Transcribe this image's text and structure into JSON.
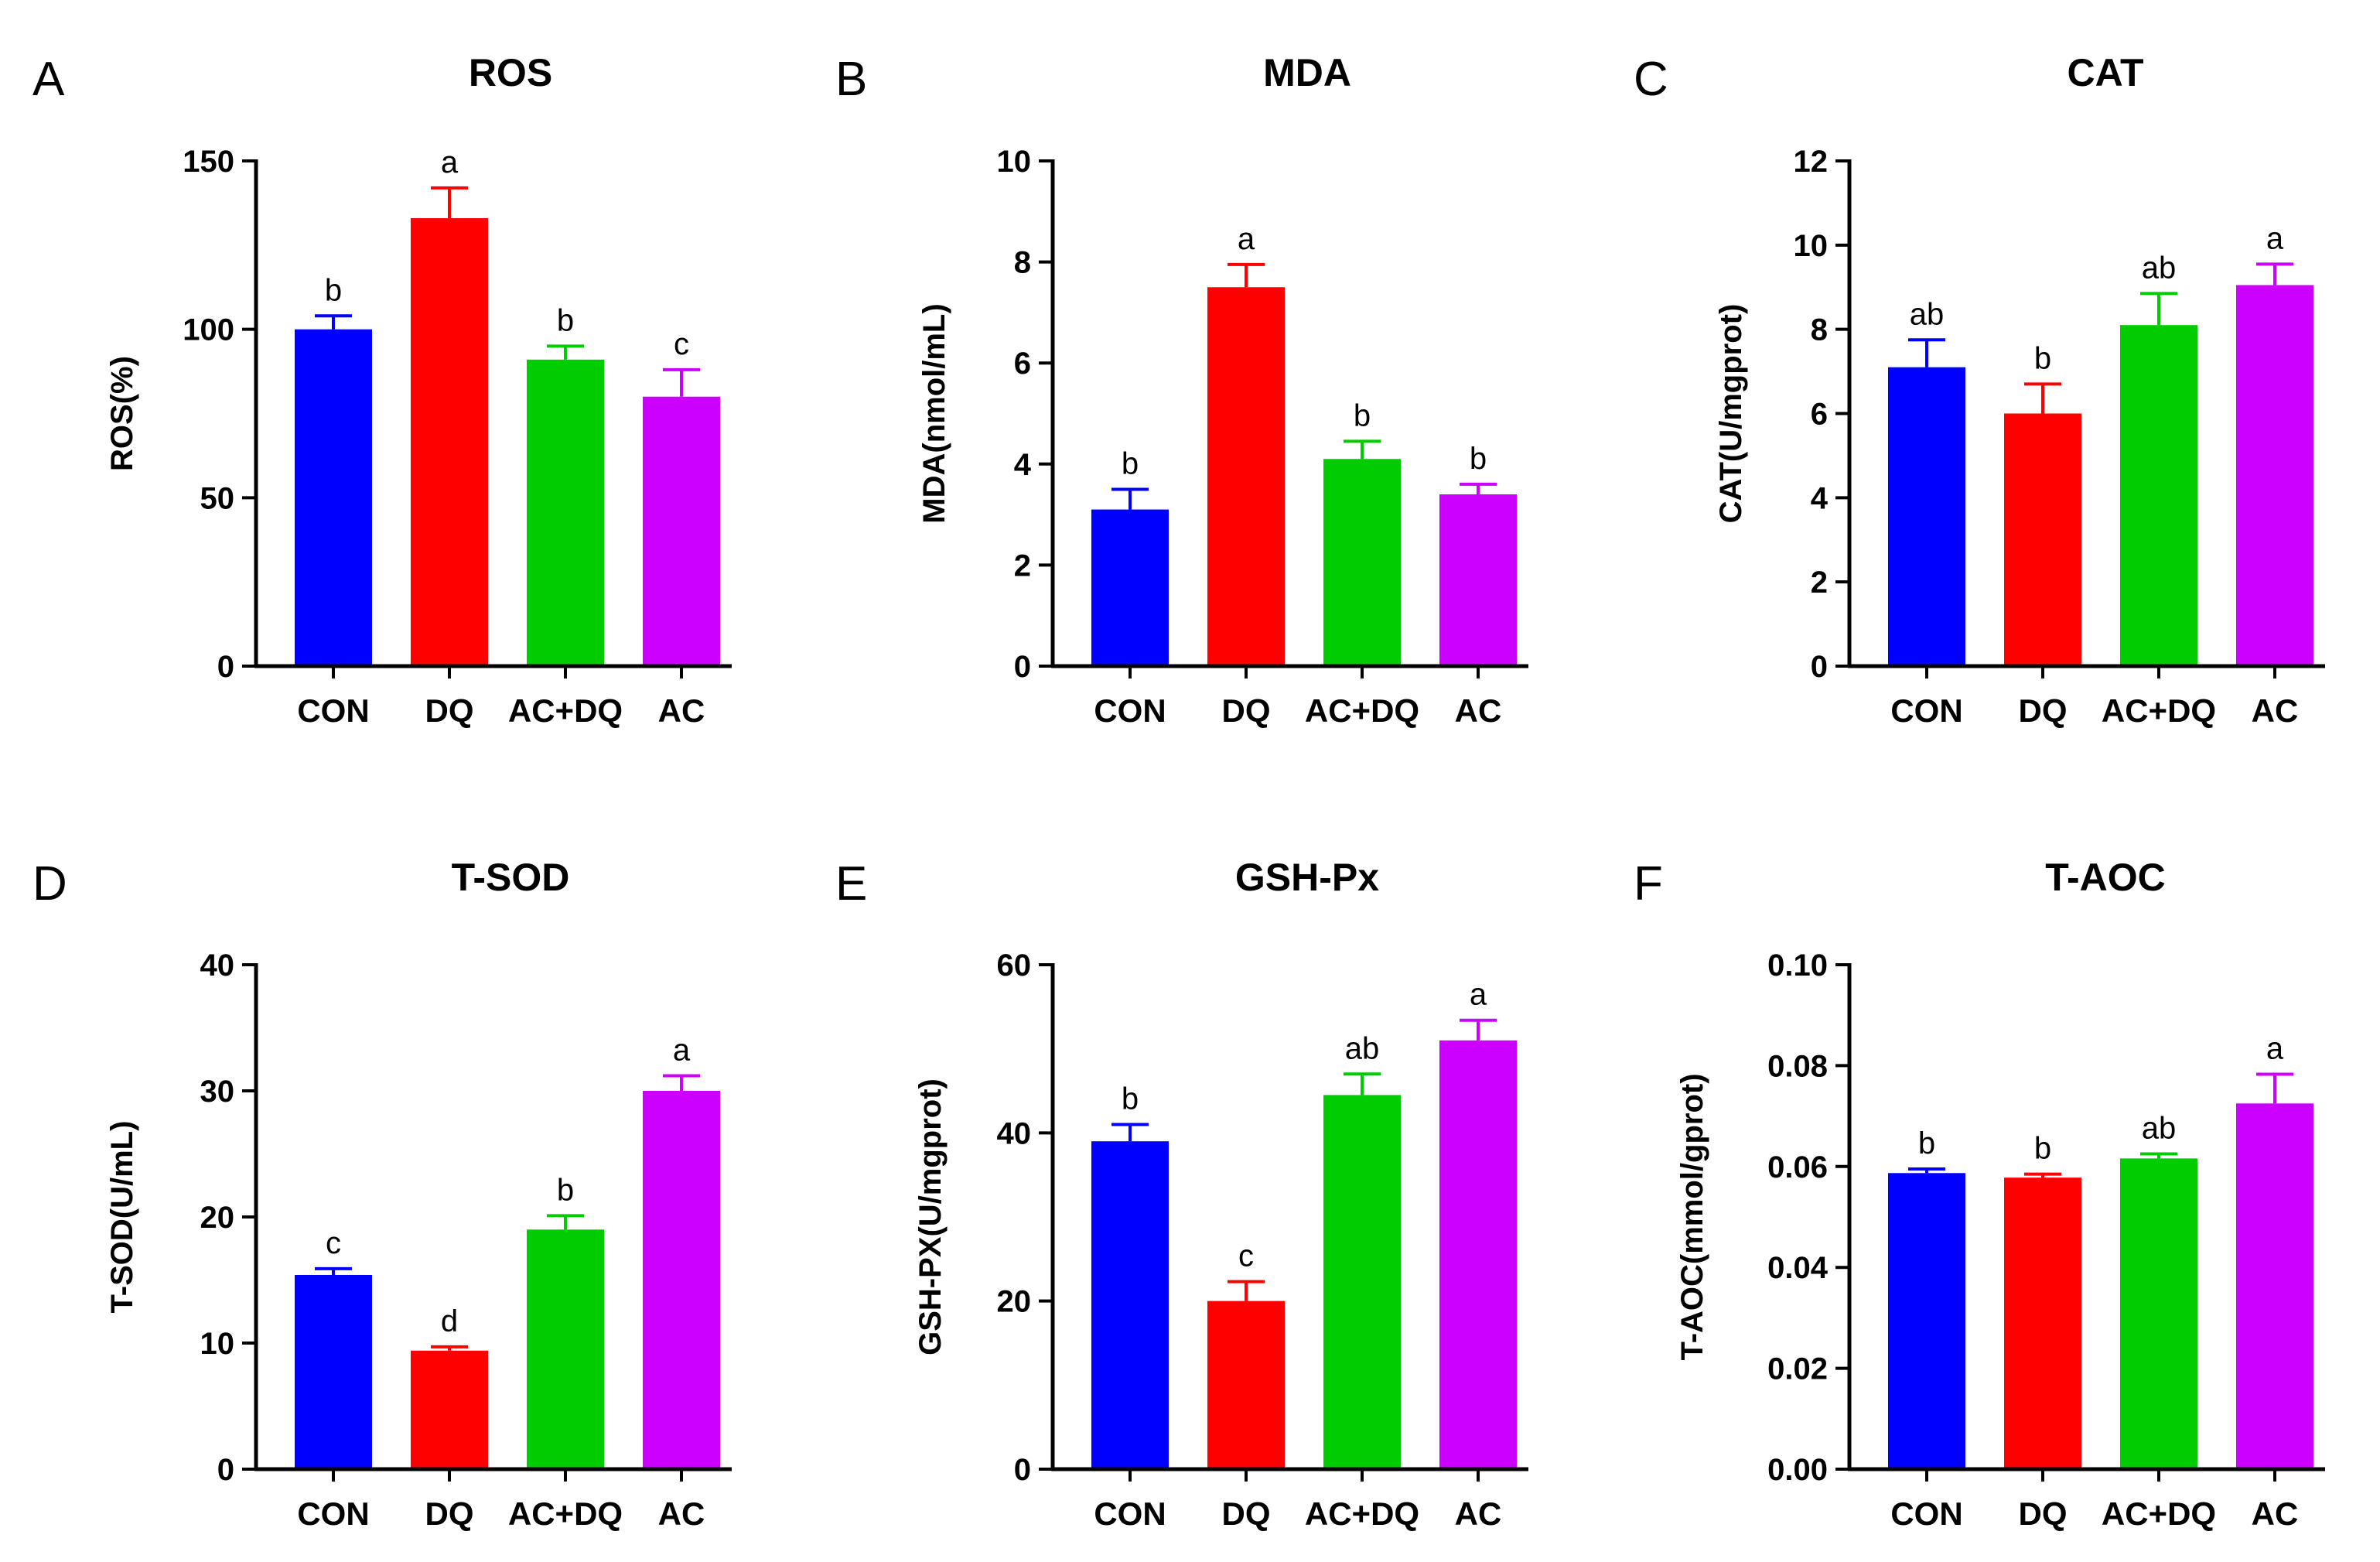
{
  "chart_data": [
    {
      "panel": "A",
      "type": "bar",
      "title": "ROS",
      "ylabel": "ROS(%)",
      "xlabel": "",
      "categories": [
        "CON",
        "DQ",
        "AC+DQ",
        "AC"
      ],
      "values": [
        100,
        133,
        91,
        80
      ],
      "errors": [
        4,
        9,
        4,
        8
      ],
      "significance": [
        "b",
        "a",
        "b",
        "c"
      ],
      "ylim": [
        0,
        150
      ],
      "yticks": [
        0,
        50,
        100,
        150
      ],
      "ytick_labels": [
        "0",
        "50",
        "100",
        "150"
      ]
    },
    {
      "panel": "B",
      "type": "bar",
      "title": "MDA",
      "ylabel": "MDA(nmol/mL)",
      "xlabel": "",
      "categories": [
        "CON",
        "DQ",
        "AC+DQ",
        "AC"
      ],
      "values": [
        3.1,
        7.5,
        4.1,
        3.4
      ],
      "errors": [
        0.4,
        0.45,
        0.35,
        0.2
      ],
      "significance": [
        "b",
        "a",
        "b",
        "b"
      ],
      "ylim": [
        0,
        10
      ],
      "yticks": [
        0,
        2,
        4,
        6,
        8,
        10
      ],
      "ytick_labels": [
        "0",
        "2",
        "4",
        "6",
        "8",
        "10"
      ]
    },
    {
      "panel": "C",
      "type": "bar",
      "title": "CAT",
      "ylabel": "CAT(U/mgprot)",
      "xlabel": "",
      "categories": [
        "CON",
        "DQ",
        "AC+DQ",
        "AC"
      ],
      "values": [
        7.1,
        6.0,
        8.1,
        9.05
      ],
      "errors": [
        0.65,
        0.7,
        0.75,
        0.5
      ],
      "significance": [
        "ab",
        "b",
        "ab",
        "a"
      ],
      "ylim": [
        0,
        12
      ],
      "yticks": [
        0,
        2,
        4,
        6,
        8,
        10,
        12
      ],
      "ytick_labels": [
        "0",
        "2",
        "4",
        "6",
        "8",
        "10",
        "12"
      ]
    },
    {
      "panel": "D",
      "type": "bar",
      "title": "T-SOD",
      "ylabel": "T-SOD(U/mL)",
      "xlabel": "",
      "categories": [
        "CON",
        "DQ",
        "AC+DQ",
        "AC"
      ],
      "values": [
        15.4,
        9.4,
        19.0,
        30.0
      ],
      "errors": [
        0.5,
        0.3,
        1.1,
        1.2
      ],
      "significance": [
        "c",
        "d",
        "b",
        "a"
      ],
      "ylim": [
        0,
        40
      ],
      "yticks": [
        0,
        10,
        20,
        30,
        40
      ],
      "ytick_labels": [
        "0",
        "10",
        "20",
        "30",
        "40"
      ]
    },
    {
      "panel": "E",
      "type": "bar",
      "title": "GSH-Px",
      "ylabel": "GSH-PX(U/mgprot)",
      "xlabel": "",
      "categories": [
        "CON",
        "DQ",
        "AC+DQ",
        "AC"
      ],
      "values": [
        39,
        20,
        44.5,
        51
      ],
      "errors": [
        2,
        2.3,
        2.5,
        2.4
      ],
      "significance": [
        "b",
        "c",
        "ab",
        "a"
      ],
      "ylim": [
        0,
        60
      ],
      "yticks": [
        0,
        20,
        40,
        60
      ],
      "ytick_labels": [
        "0",
        "20",
        "40",
        "60"
      ]
    },
    {
      "panel": "F",
      "type": "bar",
      "title": "T-AOC",
      "ylabel": "T-AOC(mmol/gprot)",
      "xlabel": "",
      "categories": [
        "CON",
        "DQ",
        "AC+DQ",
        "AC"
      ],
      "values": [
        0.0587,
        0.0578,
        0.0616,
        0.0725
      ],
      "errors": [
        0.0008,
        0.0007,
        0.0009,
        0.0058
      ],
      "significance": [
        "b",
        "b",
        "ab",
        "a"
      ],
      "ylim": [
        0,
        0.1
      ],
      "yticks": [
        0,
        0.02,
        0.04,
        0.06,
        0.08,
        0.1
      ],
      "ytick_labels": [
        "0.00",
        "0.02",
        "0.04",
        "0.06",
        "0.08",
        "0.10"
      ]
    }
  ],
  "colors": {
    "bars": [
      "#0000ff",
      "#ff0000",
      "#00cc00",
      "#cc00ff"
    ],
    "axis": "#000000"
  }
}
